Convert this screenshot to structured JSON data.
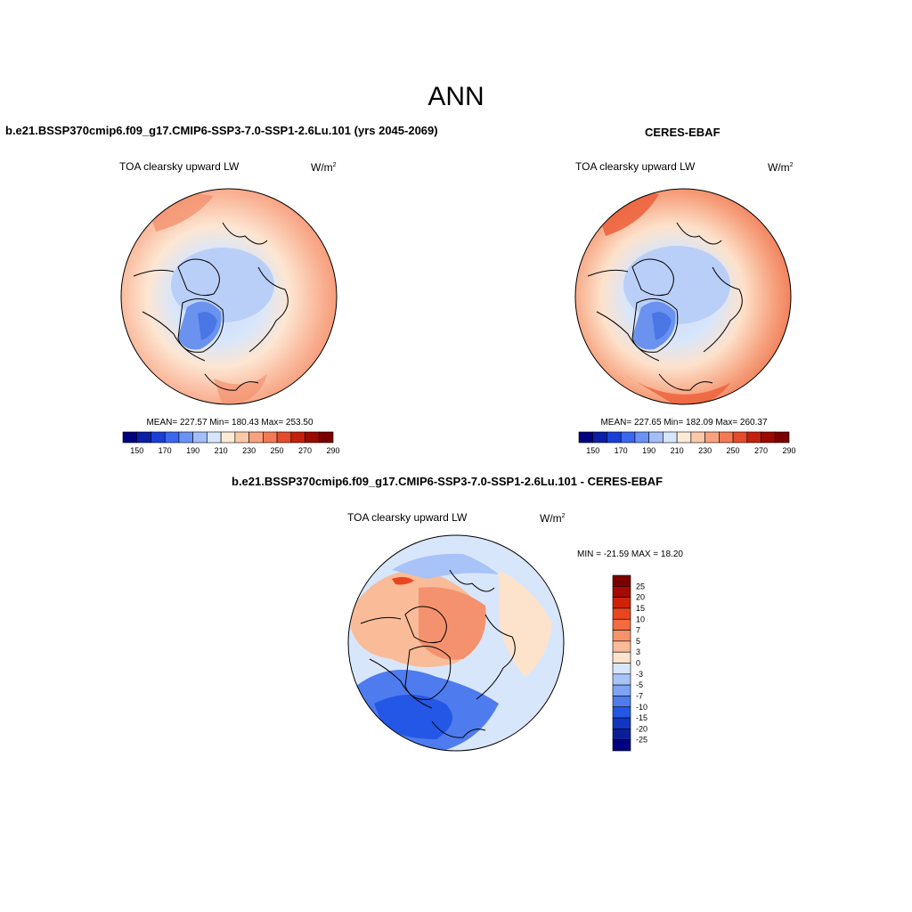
{
  "figure": {
    "main_title": "ANN"
  },
  "panels": {
    "model": {
      "title": "b.e21.BSSP370cmip6.f09_g17.CMIP6-SSP3-7.0-SSP1-2.6Lu.101 (yrs 2045-2069)",
      "variable": "TOA clearsky upward LW",
      "units": "W/m",
      "units_sup": "2",
      "mean_label": "MEAN= 227.57  Min= 180.43  Max= 253.50",
      "stats": {
        "mean": 227.57,
        "min": 180.43,
        "max": 253.5
      }
    },
    "obs": {
      "title": "CERES-EBAF",
      "variable": "TOA clearsky upward LW",
      "units": "W/m",
      "units_sup": "2",
      "mean_label": "MEAN= 227.65  Min= 182.09  Max= 260.37",
      "stats": {
        "mean": 227.65,
        "min": 182.09,
        "max": 260.37
      }
    },
    "diff": {
      "title": "b.e21.BSSP370cmip6.f09_g17.CMIP6-SSP3-7.0-SSP1-2.6Lu.101 - CERES-EBAF",
      "variable": "TOA clearsky upward LW",
      "units": "W/m",
      "units_sup": "2",
      "minmax_label": "MIN = -21.59 MAX =  18.20",
      "stats": {
        "min": -21.59,
        "max": 18.2
      }
    }
  },
  "colorbar_abs": {
    "tick_labels": [
      "150",
      "170",
      "190",
      "210",
      "230",
      "250",
      "270",
      "290"
    ],
    "colors": [
      "#00007f",
      "#0a1fa6",
      "#1a3fd9",
      "#3b66f0",
      "#6b92f5",
      "#a3bef9",
      "#d8e6fb",
      "#fdebd6",
      "#fcc9a8",
      "#f9a27e",
      "#f47a55",
      "#e54b2b",
      "#c4200e",
      "#9a0a00",
      "#7a0000"
    ]
  },
  "colorbar_diff": {
    "tick_labels": [
      "25",
      "20",
      "15",
      "10",
      "7",
      "5",
      "3",
      "0",
      "-3",
      "-5",
      "-7",
      "-10",
      "-15",
      "-20",
      "-25"
    ],
    "colors": [
      "#7a0000",
      "#a60a00",
      "#cf2208",
      "#e8461f",
      "#f36b40",
      "#f7936a",
      "#fabb98",
      "#fde3cc",
      "#d8e6fb",
      "#a8c3f7",
      "#7ea4f3",
      "#4e7cee",
      "#2557e6",
      "#1036c2",
      "#0a1f96",
      "#00007f"
    ]
  }
}
